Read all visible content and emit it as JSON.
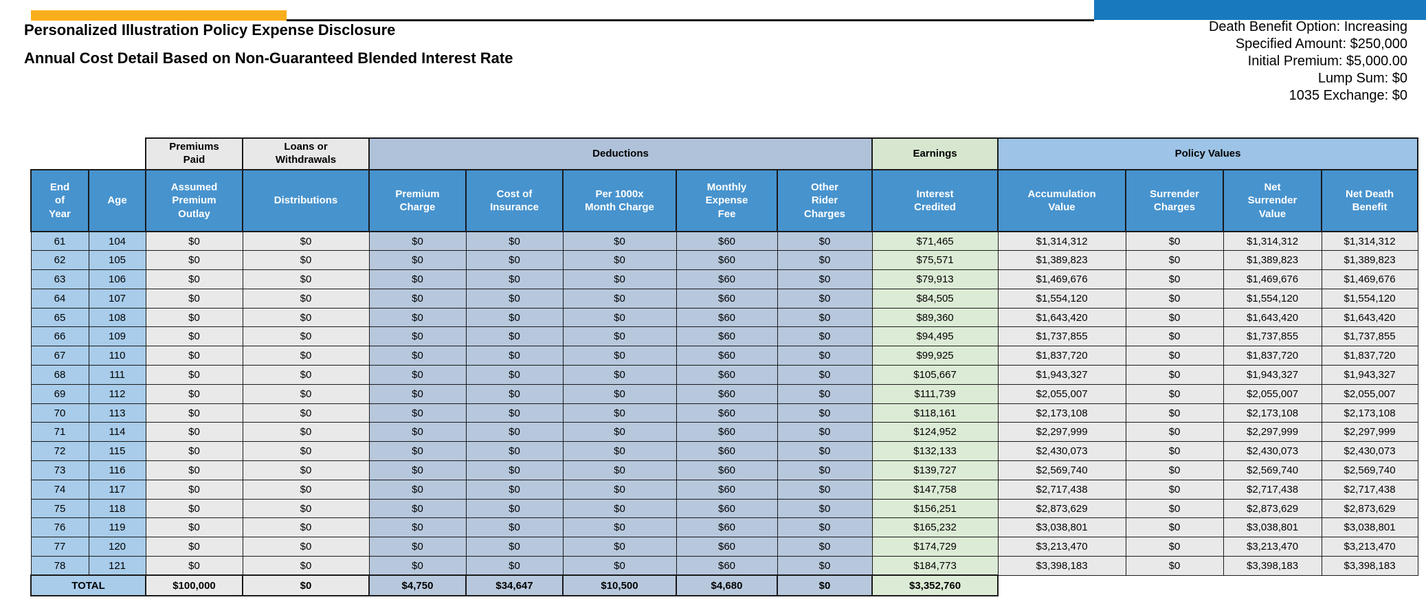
{
  "colors": {
    "brand_orange": "#F9AF1B",
    "brand_blue": "#1879BF",
    "header_blue": "#4793CE",
    "header_text": "#FFFFFF",
    "group_gray": "#E8E8E8",
    "group_bluegray": "#AFC2D9",
    "group_green": "#D7E7CF",
    "group_lightblue": "#9DC3E6",
    "cell_lightblue": "#A8CCEA",
    "cell_gray": "#E9E9E9",
    "cell_bluegray": "#B7C8DD",
    "cell_green": "#DCEBD5",
    "border": "#1A1A1A"
  },
  "header": {
    "title": "Personalized Illustration Policy Expense Disclosure",
    "subtitle": "Annual Cost Detail Based on Non-Guaranteed Blended Interest Rate",
    "policy_info": [
      "Death Benefit Option: Increasing",
      "Specified Amount: $250,000",
      "Initial Premium: $5,000.00",
      "Lump Sum: $0",
      "1035 Exchange: $0"
    ]
  },
  "table": {
    "groups": [
      {
        "label": "",
        "span": 2,
        "style": "none"
      },
      {
        "label": "Premiums\nPaid",
        "span": 1,
        "style": "gray"
      },
      {
        "label": "Loans or\nWithdrawals",
        "span": 1,
        "style": "gray"
      },
      {
        "label": "Deductions",
        "span": 5,
        "style": "bluegray"
      },
      {
        "label": "Earnings",
        "span": 1,
        "style": "green"
      },
      {
        "label": "Policy Values",
        "span": 4,
        "style": "lightblue"
      }
    ],
    "columns": [
      "End\nof\nYear",
      "Age",
      "Assumed\nPremium\nOutlay",
      "Distributions",
      "Premium\nCharge",
      "Cost of\nInsurance",
      "Per 1000x\nMonth Charge",
      "Monthly\nExpense\nFee",
      "Other\nRider\nCharges",
      "Interest\nCredited",
      "Accumulation\nValue",
      "Surrender\nCharges",
      "Net\nSurrender\nValue",
      "Net Death\nBenefit"
    ],
    "rows": [
      [
        "61",
        "104",
        "$0",
        "$0",
        "$0",
        "$0",
        "$0",
        "$60",
        "$0",
        "$71,465",
        "$1,314,312",
        "$0",
        "$1,314,312",
        "$1,314,312"
      ],
      [
        "62",
        "105",
        "$0",
        "$0",
        "$0",
        "$0",
        "$0",
        "$60",
        "$0",
        "$75,571",
        "$1,389,823",
        "$0",
        "$1,389,823",
        "$1,389,823"
      ],
      [
        "63",
        "106",
        "$0",
        "$0",
        "$0",
        "$0",
        "$0",
        "$60",
        "$0",
        "$79,913",
        "$1,469,676",
        "$0",
        "$1,469,676",
        "$1,469,676"
      ],
      [
        "64",
        "107",
        "$0",
        "$0",
        "$0",
        "$0",
        "$0",
        "$60",
        "$0",
        "$84,505",
        "$1,554,120",
        "$0",
        "$1,554,120",
        "$1,554,120"
      ],
      [
        "65",
        "108",
        "$0",
        "$0",
        "$0",
        "$0",
        "$0",
        "$60",
        "$0",
        "$89,360",
        "$1,643,420",
        "$0",
        "$1,643,420",
        "$1,643,420"
      ],
      [
        "66",
        "109",
        "$0",
        "$0",
        "$0",
        "$0",
        "$0",
        "$60",
        "$0",
        "$94,495",
        "$1,737,855",
        "$0",
        "$1,737,855",
        "$1,737,855"
      ],
      [
        "67",
        "110",
        "$0",
        "$0",
        "$0",
        "$0",
        "$0",
        "$60",
        "$0",
        "$99,925",
        "$1,837,720",
        "$0",
        "$1,837,720",
        "$1,837,720"
      ],
      [
        "68",
        "111",
        "$0",
        "$0",
        "$0",
        "$0",
        "$0",
        "$60",
        "$0",
        "$105,667",
        "$1,943,327",
        "$0",
        "$1,943,327",
        "$1,943,327"
      ],
      [
        "69",
        "112",
        "$0",
        "$0",
        "$0",
        "$0",
        "$0",
        "$60",
        "$0",
        "$111,739",
        "$2,055,007",
        "$0",
        "$2,055,007",
        "$2,055,007"
      ],
      [
        "70",
        "113",
        "$0",
        "$0",
        "$0",
        "$0",
        "$0",
        "$60",
        "$0",
        "$118,161",
        "$2,173,108",
        "$0",
        "$2,173,108",
        "$2,173,108"
      ],
      [
        "71",
        "114",
        "$0",
        "$0",
        "$0",
        "$0",
        "$0",
        "$60",
        "$0",
        "$124,952",
        "$2,297,999",
        "$0",
        "$2,297,999",
        "$2,297,999"
      ],
      [
        "72",
        "115",
        "$0",
        "$0",
        "$0",
        "$0",
        "$0",
        "$60",
        "$0",
        "$132,133",
        "$2,430,073",
        "$0",
        "$2,430,073",
        "$2,430,073"
      ],
      [
        "73",
        "116",
        "$0",
        "$0",
        "$0",
        "$0",
        "$0",
        "$60",
        "$0",
        "$139,727",
        "$2,569,740",
        "$0",
        "$2,569,740",
        "$2,569,740"
      ],
      [
        "74",
        "117",
        "$0",
        "$0",
        "$0",
        "$0",
        "$0",
        "$60",
        "$0",
        "$147,758",
        "$2,717,438",
        "$0",
        "$2,717,438",
        "$2,717,438"
      ],
      [
        "75",
        "118",
        "$0",
        "$0",
        "$0",
        "$0",
        "$0",
        "$60",
        "$0",
        "$156,251",
        "$2,873,629",
        "$0",
        "$2,873,629",
        "$2,873,629"
      ],
      [
        "76",
        "119",
        "$0",
        "$0",
        "$0",
        "$0",
        "$0",
        "$60",
        "$0",
        "$165,232",
        "$3,038,801",
        "$0",
        "$3,038,801",
        "$3,038,801"
      ],
      [
        "77",
        "120",
        "$0",
        "$0",
        "$0",
        "$0",
        "$0",
        "$60",
        "$0",
        "$174,729",
        "$3,213,470",
        "$0",
        "$3,213,470",
        "$3,213,470"
      ],
      [
        "78",
        "121",
        "$0",
        "$0",
        "$0",
        "$0",
        "$0",
        "$60",
        "$0",
        "$184,773",
        "$3,398,183",
        "$0",
        "$3,398,183",
        "$3,398,183"
      ]
    ],
    "total": {
      "label": "TOTAL",
      "values": [
        "$100,000",
        "$0",
        "$4,750",
        "$34,647",
        "$10,500",
        "$4,680",
        "$0",
        "$3,352,760"
      ]
    }
  }
}
